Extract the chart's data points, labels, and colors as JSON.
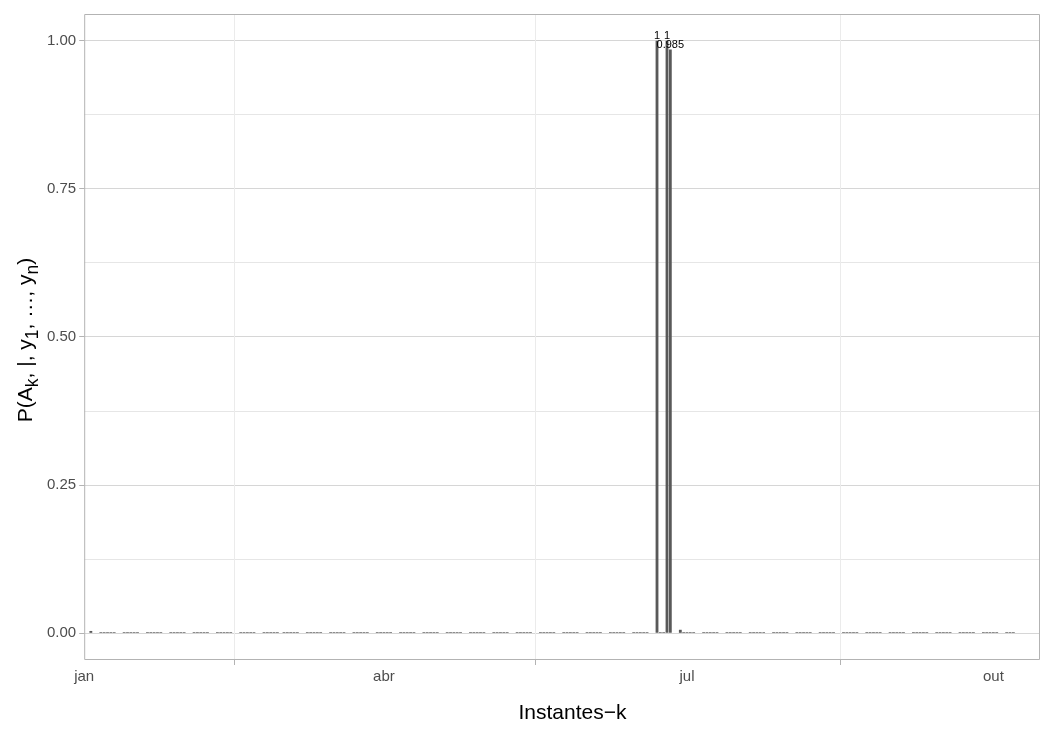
{
  "chart_data": {
    "type": "bar",
    "xlabel": "Instantes−k",
    "ylabel": "P(A$_{k}$, |, y$_{1}$, …, y$_{n}$)",
    "x": [
      "--01-03",
      "--01-06",
      "--01-07",
      "--01-08",
      "--01-09",
      "--01-10",
      "--01-13",
      "--01-14",
      "--01-15",
      "--01-16",
      "--01-17",
      "--01-20",
      "--01-21",
      "--01-22",
      "--01-23",
      "--01-24",
      "--01-27",
      "--01-28",
      "--01-29",
      "--01-30",
      "--01-31",
      "--02-03",
      "--02-04",
      "--02-05",
      "--02-06",
      "--02-07",
      "--02-10",
      "--02-11",
      "--02-12",
      "--02-13",
      "--02-14",
      "--02-17",
      "--02-18",
      "--02-19",
      "--02-20",
      "--02-21",
      "--02-24",
      "--02-25",
      "--02-26",
      "--02-27",
      "--02-28",
      "--03-02",
      "--03-03",
      "--03-04",
      "--03-05",
      "--03-06",
      "--03-09",
      "--03-10",
      "--03-11",
      "--03-12",
      "--03-13",
      "--03-16",
      "--03-17",
      "--03-18",
      "--03-19",
      "--03-20",
      "--03-23",
      "--03-24",
      "--03-25",
      "--03-26",
      "--03-27",
      "--03-30",
      "--03-31",
      "--04-01",
      "--04-02",
      "--04-03",
      "--04-06",
      "--04-07",
      "--04-08",
      "--04-09",
      "--04-10",
      "--04-13",
      "--04-14",
      "--04-15",
      "--04-16",
      "--04-17",
      "--04-20",
      "--04-21",
      "--04-22",
      "--04-23",
      "--04-24",
      "--04-27",
      "--04-28",
      "--04-29",
      "--04-30",
      "--05-01",
      "--05-04",
      "--05-05",
      "--05-06",
      "--05-07",
      "--05-08",
      "--05-11",
      "--05-12",
      "--05-13",
      "--05-14",
      "--05-15",
      "--05-18",
      "--05-19",
      "--05-20",
      "--05-21",
      "--05-22",
      "--05-25",
      "--05-26",
      "--05-27",
      "--05-28",
      "--05-29",
      "--06-01",
      "--06-02",
      "--06-03",
      "--06-04",
      "--06-05",
      "--06-08",
      "--06-09",
      "--06-10",
      "--06-11",
      "--06-12",
      "--06-15",
      "--06-16",
      "--06-17",
      "--06-18",
      "--06-19",
      "--06-22",
      "--06-23",
      "--06-24",
      "--06-25",
      "--06-26",
      "--06-29",
      "--06-30",
      "--07-01",
      "--07-02",
      "--07-03",
      "--07-06",
      "--07-07",
      "--07-08",
      "--07-09",
      "--07-10",
      "--07-13",
      "--07-14",
      "--07-15",
      "--07-16",
      "--07-17",
      "--07-20",
      "--07-21",
      "--07-22",
      "--07-23",
      "--07-24",
      "--07-27",
      "--07-28",
      "--07-29",
      "--07-30",
      "--07-31",
      "--08-03",
      "--08-04",
      "--08-05",
      "--08-06",
      "--08-07",
      "--08-10",
      "--08-11",
      "--08-12",
      "--08-13",
      "--08-14",
      "--08-17",
      "--08-18",
      "--08-19",
      "--08-20",
      "--08-21",
      "--08-24",
      "--08-25",
      "--08-26",
      "--08-27",
      "--08-28",
      "--08-31",
      "--09-01",
      "--09-02",
      "--09-03",
      "--09-04",
      "--09-07",
      "--09-08",
      "--09-09",
      "--09-10",
      "--09-11",
      "--09-14",
      "--09-15",
      "--09-16",
      "--09-17",
      "--09-18",
      "--09-21",
      "--09-22",
      "--09-23",
      "--09-24",
      "--09-25",
      "--09-28",
      "--09-29",
      "--09-30",
      "--10-01",
      "--10-02",
      "--10-05",
      "--10-06",
      "--10-07"
    ],
    "values": [
      0.004,
      0.002,
      0.002,
      0.002,
      0.002,
      0.002,
      0.002,
      0.002,
      0.002,
      0.002,
      0.002,
      0.002,
      0.002,
      0.002,
      0.002,
      0.002,
      0.002,
      0.002,
      0.002,
      0.002,
      0.002,
      0.002,
      0.002,
      0.002,
      0.002,
      0.002,
      0.002,
      0.002,
      0.002,
      0.002,
      0.002,
      0.002,
      0.002,
      0.002,
      0.002,
      0.002,
      0.002,
      0.002,
      0.002,
      0.002,
      0.002,
      0.002,
      0.002,
      0.002,
      0.002,
      0.002,
      0.002,
      0.002,
      0.002,
      0.002,
      0.002,
      0.002,
      0.002,
      0.002,
      0.002,
      0.002,
      0.002,
      0.002,
      0.002,
      0.002,
      0.002,
      0.002,
      0.002,
      0.002,
      0.002,
      0.002,
      0.002,
      0.002,
      0.002,
      0.002,
      0.002,
      0.002,
      0.002,
      0.002,
      0.002,
      0.002,
      0.002,
      0.002,
      0.002,
      0.002,
      0.002,
      0.002,
      0.002,
      0.002,
      0.002,
      0.002,
      0.002,
      0.002,
      0.002,
      0.002,
      0.002,
      0.002,
      0.002,
      0.002,
      0.002,
      0.002,
      0.002,
      0.002,
      0.002,
      0.002,
      0.002,
      0.002,
      0.002,
      0.002,
      0.002,
      0.002,
      0.002,
      0.002,
      0.002,
      0.002,
      0.002,
      0.002,
      0.002,
      0.002,
      0.002,
      0.002,
      0.002,
      0.002,
      0.002,
      0.002,
      0.002,
      1,
      0.002,
      0.002,
      1,
      0.985,
      0.006,
      0.002,
      0.002,
      0.002,
      0.002,
      0.002,
      0.002,
      0.002,
      0.002,
      0.002,
      0.002,
      0.002,
      0.002,
      0.002,
      0.002,
      0.002,
      0.002,
      0.002,
      0.002,
      0.002,
      0.002,
      0.002,
      0.002,
      0.002,
      0.002,
      0.002,
      0.002,
      0.002,
      0.002,
      0.002,
      0.002,
      0.002,
      0.002,
      0.002,
      0.002,
      0.002,
      0.002,
      0.002,
      0.002,
      0.002,
      0.002,
      0.002,
      0.002,
      0.002,
      0.002,
      0.002,
      0.002,
      0.002,
      0.002,
      0.002,
      0.002,
      0.002,
      0.002,
      0.002,
      0.002,
      0.002,
      0.002,
      0.002,
      0.002,
      0.002,
      0.002,
      0.002,
      0.002,
      0.002,
      0.002,
      0.002,
      0.002,
      0.002,
      0.002,
      0.002,
      0.002,
      0.002,
      0.002
    ],
    "color": "#595959",
    "annotations": [
      {
        "text": "1",
        "x": "--06-22",
        "y": 1
      },
      {
        "text": "1",
        "x": "--06-25",
        "y": 1
      },
      {
        "text": "0.985",
        "x": "--06-26",
        "y": 0.985
      }
    ],
    "xlim": [
      "--01-01",
      "--10-15"
    ],
    "xticks": [
      {
        "value": "--01-01",
        "label": "jan"
      },
      {
        "value": "--04-01",
        "label": "abr"
      },
      {
        "value": "--07-01",
        "label": "jul"
      },
      {
        "value": "--10-01",
        "label": "out"
      }
    ],
    "ylim": [
      -0.045,
      1.045
    ],
    "yticks": [
      {
        "value": 0,
        "label": "0.00"
      },
      {
        "value": 0.125,
        "label": null
      },
      {
        "value": 0.25,
        "label": "0.25"
      },
      {
        "value": 0.375,
        "label": null
      },
      {
        "value": 0.5,
        "label": "0.50"
      },
      {
        "value": 0.625,
        "label": null
      },
      {
        "value": 0.75,
        "label": "0.75"
      },
      {
        "value": 0.875,
        "label": null
      },
      {
        "value": 1,
        "label": "1.00"
      }
    ],
    "grid": true
  }
}
